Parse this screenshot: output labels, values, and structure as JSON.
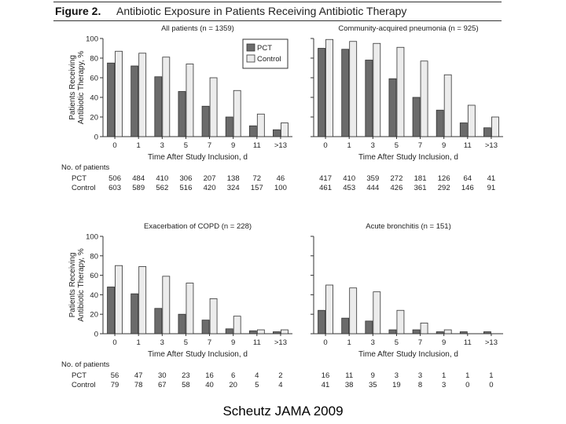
{
  "figure": {
    "label": "Figure 2.",
    "title": "Antibiotic Exposure in Patients Receiving Antibiotic Therapy"
  },
  "caption": "Scheutz JAMA 2009",
  "colors": {
    "pct": "#6b6b6b",
    "control": "#ececec",
    "axis": "#333333",
    "text": "#222222"
  },
  "chart_data": [
    {
      "type": "bar",
      "title": "All patients (n = 1359)",
      "xlabel": "Time After Study Inclusion, d",
      "ylabel": "Patients Receiving Antibiotic Therapy, %",
      "ylim": [
        0,
        100
      ],
      "yticks": [
        0,
        20,
        40,
        60,
        80,
        100
      ],
      "categories": [
        "0",
        "1",
        "3",
        "5",
        "7",
        "9",
        "11",
        ">13"
      ],
      "series": [
        {
          "name": "PCT",
          "values": [
            75,
            72,
            61,
            46,
            31,
            20,
            11,
            7
          ]
        },
        {
          "name": "Control",
          "values": [
            87,
            85,
            81,
            74,
            60,
            47,
            23,
            14
          ]
        }
      ],
      "legend": "top-right",
      "patients_header": "No. of patients",
      "patients": [
        {
          "label": "PCT",
          "counts": [
            "506",
            "484",
            "410",
            "306",
            "207",
            "138",
            "72",
            "46"
          ]
        },
        {
          "label": "Control",
          "counts": [
            "603",
            "589",
            "562",
            "516",
            "420",
            "324",
            "157",
            "100"
          ]
        }
      ]
    },
    {
      "type": "bar",
      "title": "Community-acquired pneumonia (n = 925)",
      "xlabel": "Time After Study Inclusion, d",
      "ylabel": "",
      "ylim": [
        0,
        100
      ],
      "categories": [
        "0",
        "1",
        "3",
        "5",
        "7",
        "9",
        "11",
        ">13"
      ],
      "series": [
        {
          "name": "PCT",
          "values": [
            90,
            89,
            78,
            59,
            40,
            27,
            14,
            9
          ]
        },
        {
          "name": "Control",
          "values": [
            99,
            97,
            95,
            91,
            77,
            63,
            32,
            20
          ]
        }
      ],
      "patients": [
        {
          "label": "PCT",
          "counts": [
            "417",
            "410",
            "359",
            "272",
            "181",
            "126",
            "64",
            "41"
          ]
        },
        {
          "label": "Control",
          "counts": [
            "461",
            "453",
            "444",
            "426",
            "361",
            "292",
            "146",
            "91"
          ]
        }
      ]
    },
    {
      "type": "bar",
      "title": "Exacerbation of COPD (n = 228)",
      "xlabel": "Time After Study Inclusion, d",
      "ylabel": "Patients Receiving Antibiotic Therapy, %",
      "ylim": [
        0,
        100
      ],
      "yticks": [
        0,
        20,
        40,
        60,
        80,
        100
      ],
      "categories": [
        "0",
        "1",
        "3",
        "5",
        "7",
        "9",
        "11",
        ">13"
      ],
      "series": [
        {
          "name": "PCT",
          "values": [
            48,
            41,
            26,
            20,
            14,
            5,
            3,
            2
          ]
        },
        {
          "name": "Control",
          "values": [
            70,
            69,
            59,
            52,
            36,
            18,
            4,
            4
          ]
        }
      ],
      "patients_header": "No. of patients",
      "patients": [
        {
          "label": "PCT",
          "counts": [
            "56",
            "47",
            "30",
            "23",
            "16",
            "6",
            "4",
            "2"
          ]
        },
        {
          "label": "Control",
          "counts": [
            "79",
            "78",
            "67",
            "58",
            "40",
            "20",
            "5",
            "4"
          ]
        }
      ]
    },
    {
      "type": "bar",
      "title": "Acute bronchitis (n = 151)",
      "xlabel": "Time After Study Inclusion, d",
      "ylabel": "",
      "ylim": [
        0,
        100
      ],
      "categories": [
        "0",
        "1",
        "3",
        "5",
        "7",
        "9",
        "11",
        ">13"
      ],
      "series": [
        {
          "name": "PCT",
          "values": [
            24,
            16,
            13,
            4,
            4,
            2,
            2,
            2
          ]
        },
        {
          "name": "Control",
          "values": [
            50,
            47,
            43,
            24,
            11,
            4,
            0,
            0
          ]
        }
      ],
      "patients": [
        {
          "label": "PCT",
          "counts": [
            "16",
            "11",
            "9",
            "3",
            "3",
            "1",
            "1",
            "1"
          ]
        },
        {
          "label": "Control",
          "counts": [
            "41",
            "38",
            "35",
            "19",
            "8",
            "3",
            "0",
            "0"
          ]
        }
      ]
    }
  ]
}
